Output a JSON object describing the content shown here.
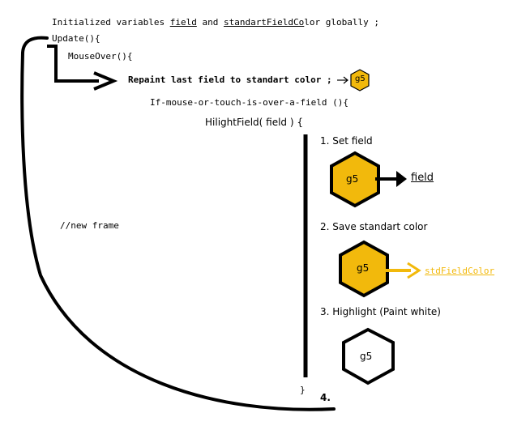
{
  "code": {
    "line1_prefix": "Initialized variables",
    "line1_var1": "field",
    "line1_and": "and",
    "line1_var2_a": "standartFieldCo",
    "line1_var2_b": "lor",
    "line1_suffix": "globally ;",
    "update": "Update(){",
    "mouseover": "MouseOver(){",
    "repaint": "Repaint last field to standart color ;",
    "if_line": "If-mouse-or-touch-is-over-a-field (){",
    "hilight": "HilightField( field ) {",
    "close_brace": "}",
    "new_frame": "//new frame"
  },
  "steps": {
    "step1": "1. Set field",
    "step2": "2. Save standart color",
    "step3": "3. Highlight (Paint white)",
    "step4": "4."
  },
  "hexes": {
    "label": "g5",
    "small_label": "g5"
  },
  "targets": {
    "field": "field",
    "std": "stdFieldColor"
  },
  "colors": {
    "gold": "#f2b90c",
    "black": "#000000",
    "white": "#ffffff"
  }
}
